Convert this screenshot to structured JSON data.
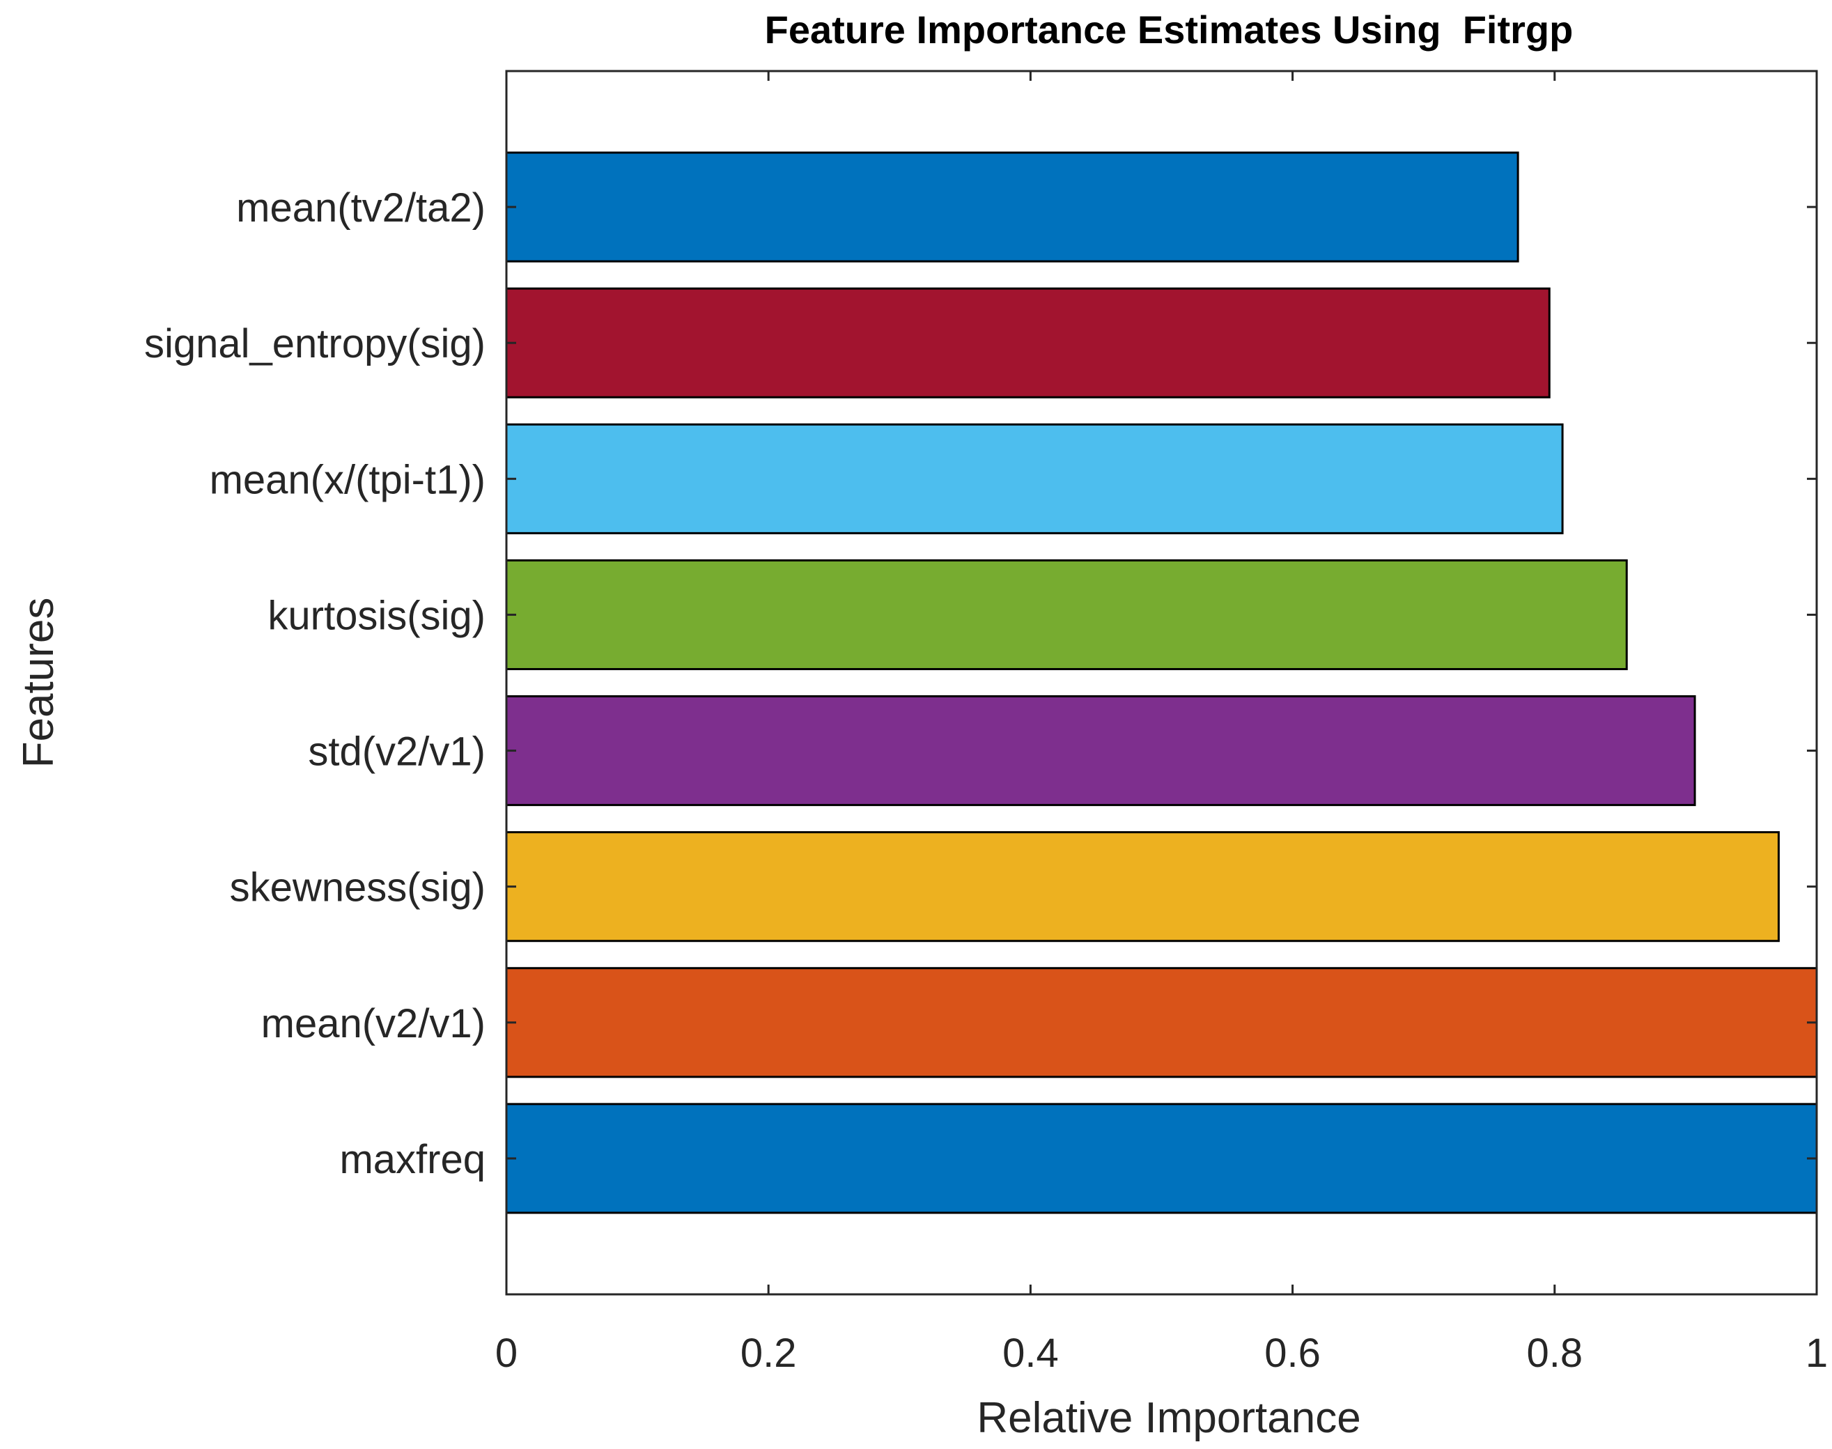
{
  "chart_data": {
    "type": "bar",
    "orientation": "horizontal",
    "title": "Feature Importance Estimates Using  Fitrgp",
    "xlabel": "Relative Importance",
    "ylabel": "Features",
    "xlim": [
      0,
      1
    ],
    "x_ticks": [
      0,
      0.2,
      0.4,
      0.6,
      0.8,
      1
    ],
    "x_tick_labels": [
      "0",
      "0.2",
      "0.4",
      "0.6",
      "0.8",
      "1"
    ],
    "grid": false,
    "categories": [
      "mean(tv2/ta2)",
      "signal_entropy(sig)",
      "mean(x/(tpi-t1))",
      "kurtosis(sig)",
      "std(v2/v1)",
      "skewness(sig)",
      "mean(v2/v1)",
      "maxfreq"
    ],
    "values": [
      0.772,
      0.796,
      0.806,
      0.855,
      0.907,
      0.971,
      1.0,
      1.0
    ],
    "colors": [
      "#0072bd",
      "#a2142f",
      "#4dbeee",
      "#77ac30",
      "#7e2f8e",
      "#edb120",
      "#d95319",
      "#0072bd"
    ]
  }
}
